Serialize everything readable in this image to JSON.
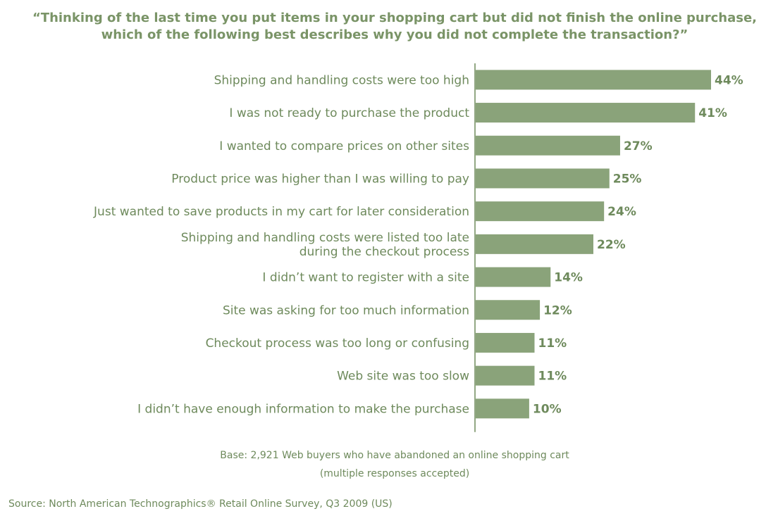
{
  "chart_data": {
    "type": "bar",
    "orientation": "horizontal",
    "title_lines": [
      "“Thinking of the last time you put items in your shopping cart but did not finish the online purchase,",
      "which of the following best describes why you did not complete the transaction?”"
    ],
    "categories": [
      [
        "Shipping and handling costs were too high"
      ],
      [
        "I was not ready to purchase the product"
      ],
      [
        "I wanted to compare prices on other sites"
      ],
      [
        "Product price was higher than I was willing to pay"
      ],
      [
        "Just wanted to save products in my cart for later consideration"
      ],
      [
        "Shipping and handling costs were listed too late",
        "during the checkout process"
      ],
      [
        "I didn’t want to register with a site"
      ],
      [
        "Site was asking for too much information"
      ],
      [
        "Checkout process was too long or confusing"
      ],
      [
        "Web site was too slow"
      ],
      [
        "I didn’t have enough information to make the purchase"
      ]
    ],
    "values": [
      44,
      41,
      27,
      25,
      24,
      22,
      14,
      12,
      11,
      11,
      10
    ],
    "value_suffix": "%",
    "xlim": [
      0,
      44
    ],
    "grid": false,
    "legend": "none",
    "bar_color": "#8aa37a",
    "text_color": "#6e8a5c"
  },
  "notes": {
    "base_line1": "Base: 2,921 Web buyers who have abandoned an online shopping cart",
    "base_line2": "(multiple responses accepted)",
    "source": "Source: North American Technographics® Retail Online Survey, Q3 2009 (US)"
  }
}
